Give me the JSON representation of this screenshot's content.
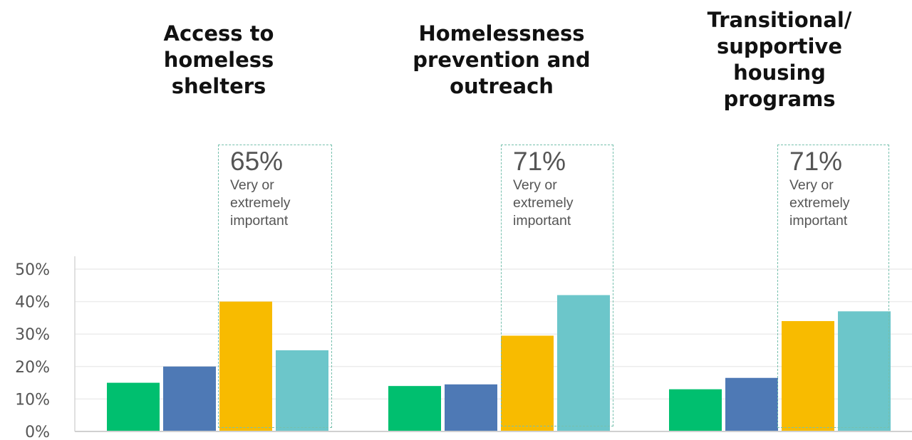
{
  "chart_data": {
    "type": "bar",
    "y_ticks": [
      "0%",
      "10%",
      "20%",
      "30%",
      "40%",
      "50%"
    ],
    "ylim": [
      0,
      50
    ],
    "grid": true,
    "colors": [
      "#00bf6f",
      "#4e79b5",
      "#f8bb00",
      "#6cc6ca"
    ],
    "panels": [
      {
        "title_lines": [
          "Access to",
          "homeless",
          "shelters"
        ],
        "values": [
          15,
          20,
          40,
          25
        ],
        "annotation": {
          "value": "65%",
          "lines": [
            "Very or",
            "extremely",
            "important"
          ]
        }
      },
      {
        "title_lines": [
          "Homelessness",
          "prevention and",
          "outreach"
        ],
        "values": [
          14,
          14.5,
          29.5,
          42
        ],
        "annotation": {
          "value": "71%",
          "lines": [
            "Very or",
            "extremely",
            "important"
          ]
        }
      },
      {
        "title_lines": [
          "Transitional/",
          "supportive",
          "housing",
          "programs"
        ],
        "values": [
          13,
          16.5,
          34,
          37
        ],
        "annotation": {
          "value": "71%",
          "lines": [
            "Very or",
            "extremely",
            "important"
          ]
        }
      }
    ]
  }
}
